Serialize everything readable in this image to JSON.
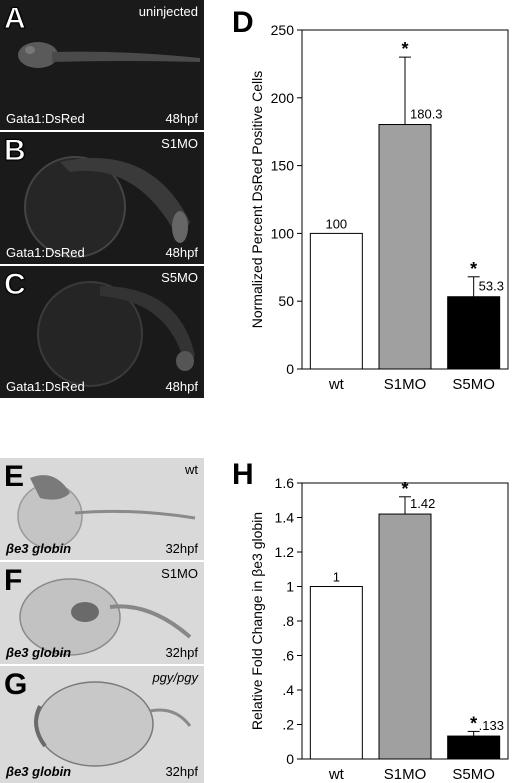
{
  "panels": {
    "A": {
      "letter": "A",
      "condition": "uninjected",
      "marker": "Gata1:DsRed",
      "stage": "48hpf"
    },
    "B": {
      "letter": "B",
      "condition": "S1MO",
      "marker": "Gata1:DsRed",
      "stage": "48hpf"
    },
    "C": {
      "letter": "C",
      "condition": "S5MO",
      "marker": "Gata1:DsRed",
      "stage": "48hpf"
    },
    "E": {
      "letter": "E",
      "condition": "wt",
      "marker": "βe3 globin",
      "stage": "32hpf"
    },
    "F": {
      "letter": "F",
      "condition": "S1MO",
      "marker": "βe3 globin",
      "stage": "32hpf"
    },
    "G": {
      "letter": "G",
      "condition": "pgy/pgy",
      "marker": "βe3 globin",
      "stage": "32hpf"
    }
  },
  "chart_labels": {
    "D": "D",
    "H": "H"
  },
  "chart_data": [
    {
      "panel": "D",
      "type": "bar",
      "categories": [
        "wt",
        "S1MO",
        "S5MO"
      ],
      "values": [
        100,
        180.3,
        53.3
      ],
      "value_labels": [
        "100",
        "180.3",
        "53.3"
      ],
      "error_upper": [
        null,
        230,
        68
      ],
      "significance": [
        "",
        "*",
        "*"
      ],
      "bar_colors": [
        "#ffffff",
        "#a0a0a0",
        "#000000"
      ],
      "ylabel": "Normalized Percent DsRed Positive Cells",
      "ylim": [
        0,
        250
      ],
      "yticks": [
        0,
        50,
        100,
        150,
        200,
        250
      ],
      "ytick_labels": [
        "0",
        "50",
        "100",
        "150",
        "200",
        "250"
      ],
      "grid": false
    },
    {
      "panel": "H",
      "type": "bar",
      "categories": [
        "wt",
        "S1MO",
        "S5MO"
      ],
      "values": [
        1,
        1.42,
        0.133
      ],
      "value_labels": [
        "1",
        "1.42",
        ".133"
      ],
      "error_upper": [
        null,
        1.52,
        0.16
      ],
      "significance": [
        "",
        "*",
        "*"
      ],
      "bar_colors": [
        "#ffffff",
        "#a0a0a0",
        "#000000"
      ],
      "ylabel": "Relative Fold Change in βe3 globin",
      "ylim": [
        0,
        1.6
      ],
      "yticks": [
        0,
        0.2,
        0.4,
        0.6,
        0.8,
        1,
        1.2,
        1.4,
        1.6
      ],
      "ytick_labels": [
        "0",
        ".2",
        ".4",
        ".6",
        ".8",
        "1",
        "1.2",
        "1.4",
        "1.6"
      ],
      "grid": false
    }
  ]
}
